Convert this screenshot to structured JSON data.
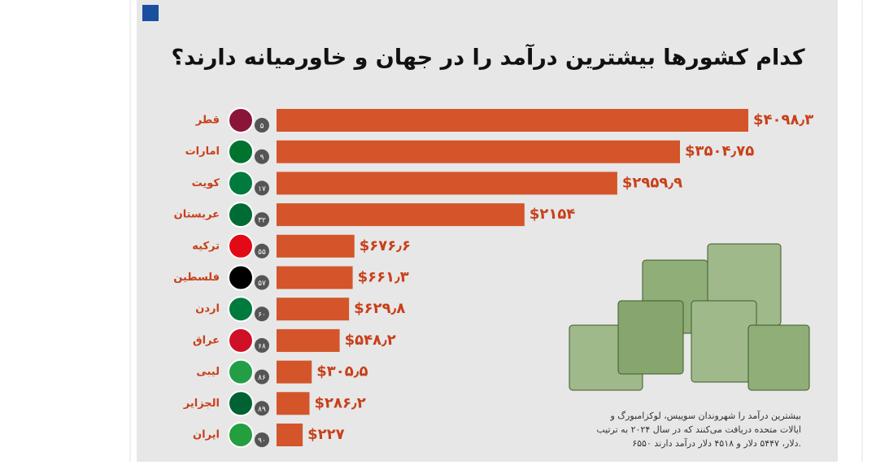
{
  "chart_data": {
    "type": "bar",
    "orientation": "horizontal",
    "title": "کدام کشورها بیشترین درآمد را در جهان و خاورمیانه دارند؟",
    "categories": [
      "قطر",
      "امارات",
      "کویت",
      "عربستان",
      "ترکیه",
      "فلسطین",
      "اردن",
      "عراق",
      "لیبی",
      "الجزایر",
      "ایران"
    ],
    "ranks": [
      "۵",
      "۹",
      "۱۷",
      "۳۲",
      "۵۵",
      "۵۷",
      "۶۰",
      "۶۸",
      "۸۶",
      "۸۹",
      "۹۰"
    ],
    "values": [
      4098.3,
      3504.75,
      2959.9,
      2154,
      676.6,
      661.3,
      629.8,
      548.2,
      305.5,
      286.2,
      227
    ],
    "value_labels": [
      "$۴۰۹۸٫۳",
      "$۳۵۰۴٫۷۵",
      "$۲۹۵۹٫۹",
      "$۲۱۵۴",
      "$۶۷۶٫۶",
      "$۶۶۱٫۳",
      "$۶۲۹٫۸",
      "$۵۴۸٫۲",
      "$۳۰۵٫۵",
      "$۲۸۶٫۲",
      "$۲۲۷"
    ],
    "color": "#d4552a",
    "note": [
      "بیشترین درآمد را شهروندان سوییس، لوکزامبورگ و",
      "ایالات متحده دریافت می‌کنند که در سال ۲۰۲۴ به ترتیب",
      "۶۵۵۰ دلار، ۵۴۴۷ دلار و ۴۵۱۸ دلار درآمد دارند."
    ]
  }
}
